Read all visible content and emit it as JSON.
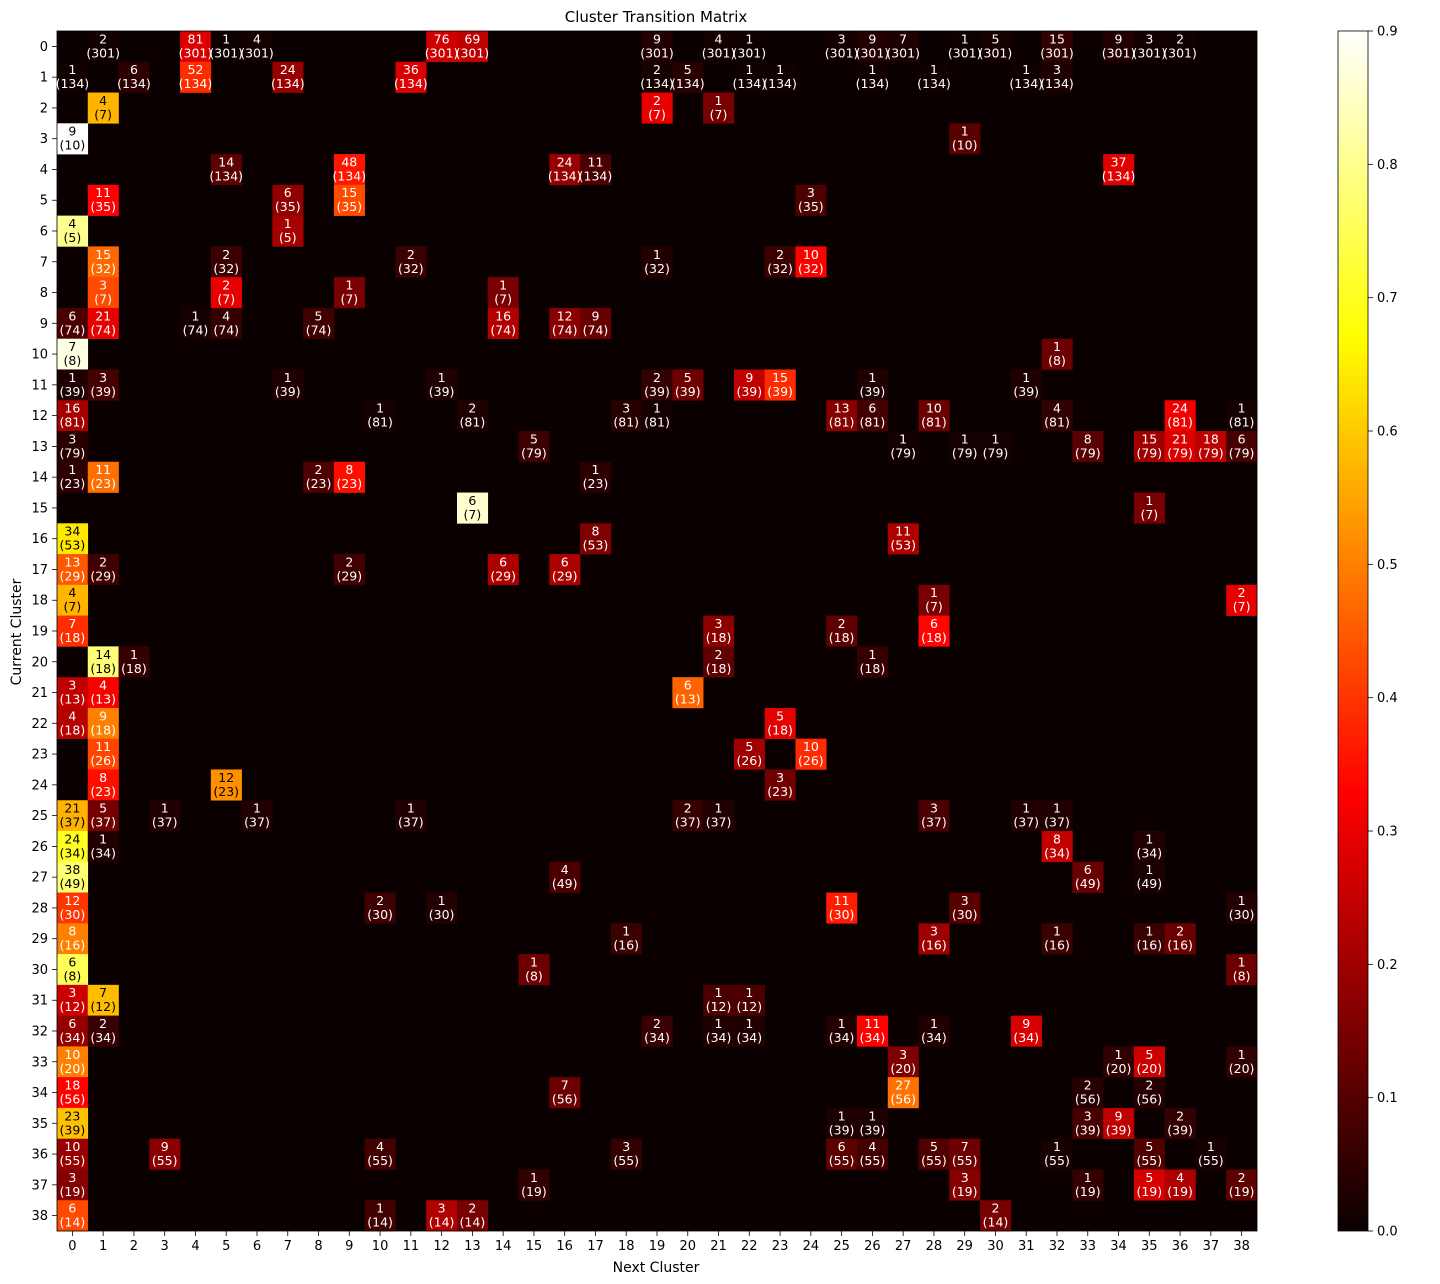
{
  "chart_data": {
    "type": "heatmap",
    "title": "Cluster Transition Matrix",
    "xlabel": "Next Cluster",
    "ylabel": "Current Cluster",
    "colormap": "hot",
    "colorbar": {
      "min": 0.0,
      "max": 0.9,
      "ticks": [
        "0.0",
        "0.1",
        "0.2",
        "0.3",
        "0.4",
        "0.5",
        "0.6",
        "0.7",
        "0.8",
        "0.9"
      ]
    },
    "rows": [
      0,
      1,
      2,
      3,
      4,
      5,
      6,
      7,
      8,
      9,
      10,
      11,
      12,
      13,
      14,
      15,
      16,
      17,
      18,
      19,
      20,
      21,
      22,
      23,
      24,
      25,
      26,
      27,
      28,
      29,
      30,
      31,
      32,
      33,
      34,
      35,
      36,
      37,
      38
    ],
    "cols": [
      0,
      1,
      2,
      3,
      4,
      5,
      6,
      7,
      8,
      9,
      10,
      11,
      12,
      13,
      14,
      15,
      16,
      17,
      18,
      19,
      20,
      21,
      22,
      23,
      24,
      25,
      26,
      27,
      28,
      29,
      30,
      31,
      32,
      33,
      34,
      35,
      36,
      37,
      38
    ],
    "row_totals": [
      301,
      134,
      7,
      10,
      134,
      35,
      5,
      32,
      7,
      74,
      8,
      39,
      81,
      79,
      23,
      7,
      53,
      29,
      7,
      18,
      18,
      13,
      18,
      26,
      23,
      37,
      34,
      49,
      30,
      16,
      8,
      12,
      34,
      20,
      56,
      39,
      55,
      19,
      14
    ],
    "cells": [
      [
        0,
        1,
        2
      ],
      [
        0,
        4,
        81
      ],
      [
        0,
        5,
        1
      ],
      [
        0,
        6,
        4
      ],
      [
        0,
        12,
        76
      ],
      [
        0,
        13,
        69
      ],
      [
        0,
        19,
        9
      ],
      [
        0,
        21,
        4
      ],
      [
        0,
        22,
        1
      ],
      [
        0,
        25,
        3
      ],
      [
        0,
        26,
        9
      ],
      [
        0,
        27,
        7
      ],
      [
        0,
        29,
        1
      ],
      [
        0,
        30,
        5
      ],
      [
        0,
        32,
        15
      ],
      [
        0,
        34,
        9
      ],
      [
        0,
        35,
        3
      ],
      [
        0,
        36,
        2
      ],
      [
        1,
        0,
        1
      ],
      [
        1,
        2,
        6
      ],
      [
        1,
        4,
        52
      ],
      [
        1,
        7,
        24
      ],
      [
        1,
        11,
        36
      ],
      [
        1,
        19,
        2
      ],
      [
        1,
        20,
        5
      ],
      [
        1,
        22,
        1
      ],
      [
        1,
        23,
        1
      ],
      [
        1,
        26,
        1
      ],
      [
        1,
        28,
        1
      ],
      [
        1,
        31,
        1
      ],
      [
        1,
        32,
        3
      ],
      [
        2,
        1,
        4
      ],
      [
        2,
        19,
        2
      ],
      [
        2,
        21,
        1
      ],
      [
        3,
        0,
        9
      ],
      [
        3,
        29,
        1
      ],
      [
        4,
        5,
        14
      ],
      [
        4,
        9,
        48
      ],
      [
        4,
        16,
        24
      ],
      [
        4,
        17,
        11
      ],
      [
        4,
        34,
        37
      ],
      [
        5,
        1,
        11
      ],
      [
        5,
        7,
        6
      ],
      [
        5,
        9,
        15
      ],
      [
        5,
        24,
        3
      ],
      [
        6,
        0,
        4
      ],
      [
        6,
        7,
        1
      ],
      [
        7,
        1,
        15
      ],
      [
        7,
        5,
        2
      ],
      [
        7,
        11,
        2
      ],
      [
        7,
        19,
        1
      ],
      [
        7,
        23,
        2
      ],
      [
        7,
        24,
        10
      ],
      [
        8,
        1,
        3
      ],
      [
        8,
        5,
        2
      ],
      [
        8,
        9,
        1
      ],
      [
        8,
        14,
        1
      ],
      [
        9,
        0,
        6
      ],
      [
        9,
        1,
        21
      ],
      [
        9,
        4,
        1
      ],
      [
        9,
        5,
        4
      ],
      [
        9,
        8,
        5
      ],
      [
        9,
        14,
        16
      ],
      [
        9,
        16,
        12
      ],
      [
        9,
        17,
        9
      ],
      [
        10,
        0,
        7
      ],
      [
        10,
        32,
        1
      ],
      [
        11,
        0,
        1
      ],
      [
        11,
        1,
        3
      ],
      [
        11,
        7,
        1
      ],
      [
        11,
        12,
        1
      ],
      [
        11,
        19,
        2
      ],
      [
        11,
        20,
        5
      ],
      [
        11,
        22,
        9
      ],
      [
        11,
        23,
        15
      ],
      [
        11,
        26,
        1
      ],
      [
        11,
        31,
        1
      ],
      [
        12,
        0,
        16
      ],
      [
        12,
        10,
        1
      ],
      [
        12,
        13,
        2
      ],
      [
        12,
        18,
        3
      ],
      [
        12,
        19,
        1
      ],
      [
        12,
        25,
        13
      ],
      [
        12,
        26,
        6
      ],
      [
        12,
        28,
        10
      ],
      [
        12,
        32,
        4
      ],
      [
        12,
        36,
        24
      ],
      [
        12,
        38,
        1
      ],
      [
        13,
        0,
        3
      ],
      [
        13,
        15,
        5
      ],
      [
        13,
        27,
        1
      ],
      [
        13,
        29,
        1
      ],
      [
        13,
        30,
        1
      ],
      [
        13,
        33,
        8
      ],
      [
        13,
        35,
        15
      ],
      [
        13,
        36,
        21
      ],
      [
        13,
        37,
        18
      ],
      [
        13,
        38,
        6
      ],
      [
        14,
        0,
        1
      ],
      [
        14,
        1,
        11
      ],
      [
        14,
        8,
        2
      ],
      [
        14,
        9,
        8
      ],
      [
        14,
        17,
        1
      ],
      [
        15,
        13,
        6
      ],
      [
        15,
        35,
        1
      ],
      [
        16,
        0,
        34
      ],
      [
        16,
        17,
        8
      ],
      [
        16,
        27,
        11
      ],
      [
        17,
        0,
        13
      ],
      [
        17,
        1,
        2
      ],
      [
        17,
        9,
        2
      ],
      [
        17,
        14,
        6
      ],
      [
        17,
        16,
        6
      ],
      [
        18,
        0,
        4
      ],
      [
        18,
        28,
        1
      ],
      [
        18,
        38,
        2
      ],
      [
        19,
        0,
        7
      ],
      [
        19,
        21,
        3
      ],
      [
        19,
        25,
        2
      ],
      [
        19,
        28,
        6
      ],
      [
        20,
        1,
        14
      ],
      [
        20,
        2,
        1
      ],
      [
        20,
        21,
        2
      ],
      [
        20,
        26,
        1
      ],
      [
        21,
        0,
        3
      ],
      [
        21,
        1,
        4
      ],
      [
        21,
        20,
        6
      ],
      [
        22,
        0,
        4
      ],
      [
        22,
        1,
        9
      ],
      [
        22,
        23,
        5
      ],
      [
        23,
        1,
        11
      ],
      [
        23,
        22,
        5
      ],
      [
        23,
        24,
        10
      ],
      [
        24,
        1,
        8
      ],
      [
        24,
        5,
        12
      ],
      [
        24,
        23,
        3
      ],
      [
        25,
        0,
        21
      ],
      [
        25,
        1,
        5
      ],
      [
        25,
        3,
        1
      ],
      [
        25,
        6,
        1
      ],
      [
        25,
        11,
        1
      ],
      [
        25,
        20,
        2
      ],
      [
        25,
        21,
        1
      ],
      [
        25,
        28,
        3
      ],
      [
        25,
        31,
        1
      ],
      [
        25,
        32,
        1
      ],
      [
        26,
        0,
        24
      ],
      [
        26,
        1,
        1
      ],
      [
        26,
        32,
        8
      ],
      [
        26,
        35,
        1
      ],
      [
        27,
        0,
        38
      ],
      [
        27,
        16,
        4
      ],
      [
        27,
        33,
        6
      ],
      [
        27,
        35,
        1
      ],
      [
        28,
        0,
        12
      ],
      [
        28,
        10,
        2
      ],
      [
        28,
        12,
        1
      ],
      [
        28,
        25,
        11
      ],
      [
        28,
        29,
        3
      ],
      [
        28,
        38,
        1
      ],
      [
        29,
        0,
        8
      ],
      [
        29,
        18,
        1
      ],
      [
        29,
        28,
        3
      ],
      [
        29,
        32,
        1
      ],
      [
        29,
        35,
        1
      ],
      [
        29,
        36,
        2
      ],
      [
        30,
        0,
        6
      ],
      [
        30,
        15,
        1
      ],
      [
        30,
        38,
        1
      ],
      [
        31,
        0,
        3
      ],
      [
        31,
        1,
        7
      ],
      [
        31,
        21,
        1
      ],
      [
        31,
        22,
        1
      ],
      [
        32,
        0,
        6
      ],
      [
        32,
        1,
        2
      ],
      [
        32,
        19,
        2
      ],
      [
        32,
        21,
        1
      ],
      [
        32,
        22,
        1
      ],
      [
        32,
        25,
        1
      ],
      [
        32,
        26,
        11
      ],
      [
        32,
        28,
        1
      ],
      [
        32,
        31,
        9
      ],
      [
        33,
        0,
        10
      ],
      [
        33,
        27,
        3
      ],
      [
        33,
        34,
        1
      ],
      [
        33,
        35,
        5
      ],
      [
        33,
        38,
        1
      ],
      [
        34,
        0,
        18
      ],
      [
        34,
        16,
        7
      ],
      [
        34,
        27,
        27
      ],
      [
        34,
        33,
        2
      ],
      [
        34,
        35,
        2
      ],
      [
        35,
        0,
        23
      ],
      [
        35,
        25,
        1
      ],
      [
        35,
        26,
        1
      ],
      [
        35,
        33,
        3
      ],
      [
        35,
        34,
        9
      ],
      [
        35,
        36,
        2
      ],
      [
        36,
        0,
        10
      ],
      [
        36,
        3,
        9
      ],
      [
        36,
        10,
        4
      ],
      [
        36,
        18,
        3
      ],
      [
        36,
        25,
        6
      ],
      [
        36,
        26,
        4
      ],
      [
        36,
        28,
        5
      ],
      [
        36,
        29,
        7
      ],
      [
        36,
        32,
        1
      ],
      [
        36,
        35,
        5
      ],
      [
        36,
        37,
        1
      ],
      [
        37,
        0,
        3
      ],
      [
        37,
        15,
        1
      ],
      [
        37,
        29,
        3
      ],
      [
        37,
        33,
        1
      ],
      [
        37,
        35,
        5
      ],
      [
        37,
        36,
        4
      ],
      [
        37,
        38,
        2
      ],
      [
        38,
        0,
        6
      ],
      [
        38,
        10,
        1
      ],
      [
        38,
        12,
        3
      ],
      [
        38,
        13,
        2
      ],
      [
        38,
        30,
        2
      ]
    ]
  }
}
